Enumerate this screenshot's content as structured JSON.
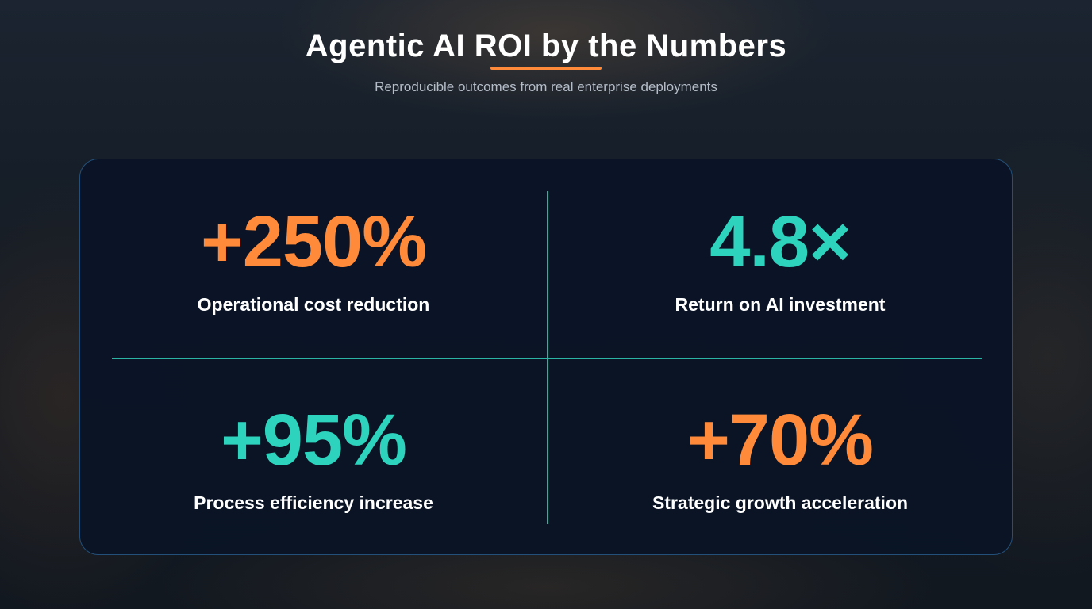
{
  "header": {
    "title": "Agentic AI ROI by the Numbers",
    "subtitle": "Reproducible outcomes from real enterprise deployments"
  },
  "stats": [
    {
      "value": "+250%",
      "label": "Operational cost reduction"
    },
    {
      "value": "4.8×",
      "label": "Return on AI investment"
    },
    {
      "value": "+95%",
      "label": "Process efficiency increase"
    },
    {
      "value": "+70%",
      "label": "Strategic growth acceleration"
    }
  ]
}
